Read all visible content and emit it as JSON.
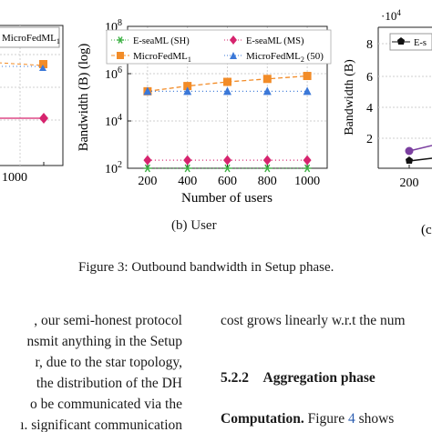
{
  "figure": {
    "left_panel": {
      "legend_fragment": "MicroFedML",
      "legend_fragment_sub": "1",
      "tick_x": "1000"
    },
    "center_panel": {
      "subcaption": "(b) User",
      "chart_data": {
        "type": "line",
        "xlabel": "Number of users",
        "ylabel": "Bandwidth (B) (log)",
        "x": [
          200,
          400,
          600,
          800,
          1000
        ],
        "x_ticks": [
          "200",
          "400",
          "600",
          "800",
          "1000"
        ],
        "y_scale": "log",
        "y_ticks": [
          "10^2",
          "10^4",
          "10^6",
          "10^8"
        ],
        "ylim": [
          100,
          100000000
        ],
        "grid": true,
        "legend_placement": "top",
        "series": [
          {
            "name": "E-seaML (SH)",
            "marker": "star",
            "color": "#3cb043",
            "linestyle": "dotted",
            "values": [
              100,
              100,
              100,
              100,
              100
            ]
          },
          {
            "name": "E-seaML (MS)",
            "marker": "diamond",
            "color": "#d6246e",
            "linestyle": "dotted",
            "values": [
              220,
              220,
              220,
              220,
              220
            ]
          },
          {
            "name": "MicroFedML1",
            "marker": "square",
            "color": "#f28c28",
            "linestyle": "dashed",
            "values": [
              180000,
              300000,
              450000,
              600000,
              800000
            ]
          },
          {
            "name": "MicroFedML2 (50)",
            "marker": "triangle",
            "color": "#3b78d8",
            "linestyle": "dotted",
            "values": [
              180000,
              180000,
              180000,
              180000,
              180000
            ]
          }
        ]
      }
    },
    "right_panel": {
      "exponent_label": "·10^4",
      "ylabel": "Bandwidth (B)",
      "y_ticks": [
        "2",
        "4",
        "6",
        "8"
      ],
      "x_tick": "200",
      "legend_fragment": "E-s",
      "subcaption_fragment": "(c"
    },
    "caption": "Figure 3: Outbound bandwidth in Setup phase."
  },
  "text": {
    "left_column": [
      ", our semi-honest protocol",
      "nsmit anything in the Setup",
      "r, due to the star topology,",
      "the distribution of the DH",
      "o be communicated via the",
      "ı. significant communication"
    ],
    "right_column": {
      "line1": "cost grows linearly w.r.t the num",
      "section_number": "5.2.2",
      "section_title": "Aggregation phase",
      "para_bold": "Computation.",
      "para_text": " Figure ",
      "para_ref": "4",
      "para_text2": " shows"
    }
  },
  "colors": {
    "sh": "#3cb043",
    "ms": "#d6246e",
    "micro1": "#f28c28",
    "micro2": "#3b78d8",
    "grid": "#cfcfcf",
    "link": "#2a5db0",
    "purple": "#7b3fa0"
  }
}
